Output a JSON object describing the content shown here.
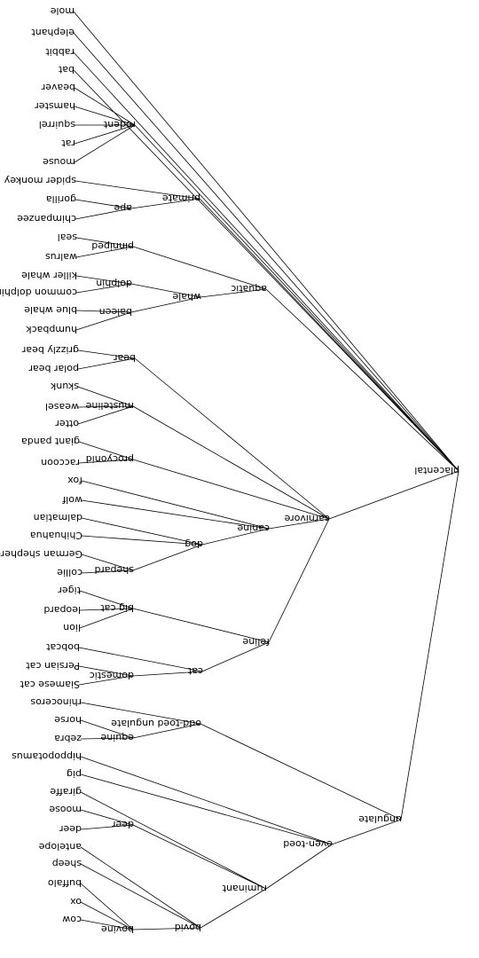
{
  "tree": {
    "name": "placental",
    "children": [
      {
        "name": "mole"
      },
      {
        "name": "elephant"
      },
      {
        "name": "rabbit"
      },
      {
        "name": "bat"
      },
      {
        "name": "rodent",
        "children": [
          {
            "name": "beaver"
          },
          {
            "name": "hamster"
          },
          {
            "name": "squirrel"
          },
          {
            "name": "rat"
          },
          {
            "name": "mouse"
          }
        ]
      },
      {
        "name": "primate",
        "children": [
          {
            "name": "spider monkey"
          },
          {
            "name": "ape",
            "children": [
              {
                "name": "gorilla"
              },
              {
                "name": "chimpanzee"
              }
            ]
          }
        ]
      },
      {
        "name": "aquatic",
        "children": [
          {
            "name": "pinniped",
            "children": [
              {
                "name": "seal"
              },
              {
                "name": "walrus"
              }
            ]
          },
          {
            "name": "whale",
            "children": [
              {
                "name": "dolphin",
                "children": [
                  {
                    "name": "killer whale"
                  },
                  {
                    "name": "common dolphin"
                  }
                ]
              },
              {
                "name": "baleen",
                "children": [
                  {
                    "name": "blue whale"
                  },
                  {
                    "name": "humpback"
                  }
                ]
              }
            ]
          }
        ]
      },
      {
        "name": "carnivore",
        "children": [
          {
            "name": "bear",
            "children": [
              {
                "name": "grizzly bear"
              },
              {
                "name": "polar bear"
              }
            ]
          },
          {
            "name": "musteline",
            "children": [
              {
                "name": "skunk"
              },
              {
                "name": "weasel"
              },
              {
                "name": "otter"
              }
            ]
          },
          {
            "name": "procyonid",
            "children": [
              {
                "name": "giant panda"
              },
              {
                "name": "raccoon"
              }
            ]
          },
          {
            "name": "canine",
            "children": [
              {
                "name": "fox"
              },
              {
                "name": "wolf"
              },
              {
                "name": "dog",
                "children": [
                  {
                    "name": "dalmatian"
                  },
                  {
                    "name": "Chihuahua"
                  },
                  {
                    "name": "shepard",
                    "children": [
                      {
                        "name": "German shepherd"
                      },
                      {
                        "name": "collie"
                      }
                    ]
                  }
                ]
              }
            ]
          },
          {
            "name": "feline",
            "children": [
              {
                "name": "big cat",
                "children": [
                  {
                    "name": "tiger"
                  },
                  {
                    "name": "leopard"
                  },
                  {
                    "name": "lion"
                  }
                ]
              },
              {
                "name": "cat",
                "children": [
                  {
                    "name": "bobcat"
                  },
                  {
                    "name": "domestic",
                    "children": [
                      {
                        "name": "Persian cat"
                      },
                      {
                        "name": "Siamese cat"
                      }
                    ]
                  }
                ]
              }
            ]
          }
        ]
      },
      {
        "name": "ungulate",
        "children": [
          {
            "name": "odd-toed ungulate",
            "children": [
              {
                "name": "rhinoceros"
              },
              {
                "name": "equine",
                "children": [
                  {
                    "name": "horse"
                  },
                  {
                    "name": "zebra"
                  }
                ]
              }
            ]
          },
          {
            "name": "even-toed",
            "children": [
              {
                "name": "hippopotamus"
              },
              {
                "name": "pig"
              },
              {
                "name": "ruminant",
                "children": [
                  {
                    "name": "giraffe"
                  },
                  {
                    "name": "deer",
                    "children": [
                      {
                        "name": "moose"
                      },
                      {
                        "name": "deer"
                      }
                    ]
                  },
                  {
                    "name": "bovid",
                    "children": [
                      {
                        "name": "antelope"
                      },
                      {
                        "name": "sheep"
                      },
                      {
                        "name": "bovine",
                        "children": [
                          {
                            "name": "buffalo"
                          },
                          {
                            "name": "ox"
                          },
                          {
                            "name": "cow"
                          }
                        ]
                      }
                    ]
                  }
                ]
              }
            ]
          }
        ]
      }
    ]
  }
}
